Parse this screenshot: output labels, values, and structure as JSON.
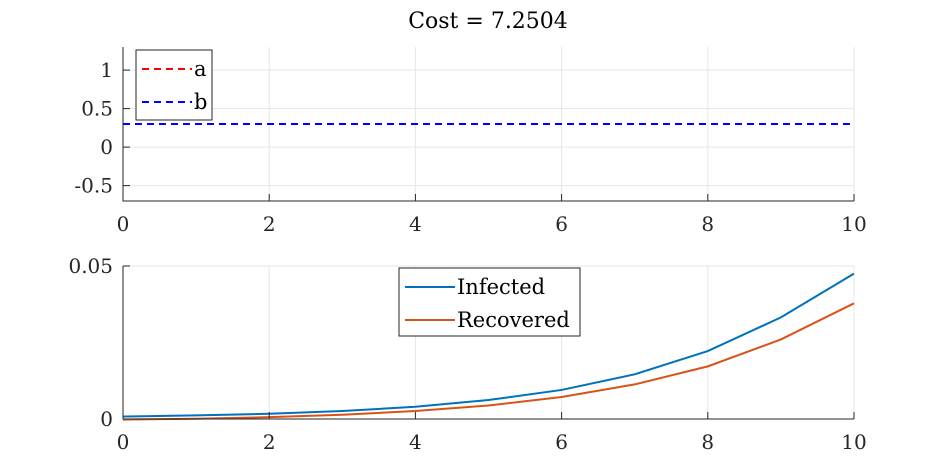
{
  "chart_data": [
    {
      "type": "line",
      "title": "Cost = 7.2504",
      "xlim": [
        0,
        10
      ],
      "ylim": [
        -0.7,
        1.3
      ],
      "xticks": [
        "0",
        "2",
        "4",
        "6",
        "8",
        "10"
      ],
      "xtick_values": [
        0,
        2,
        4,
        6,
        8,
        10
      ],
      "yticks": [
        "1",
        "0.5",
        "0",
        "-0.5"
      ],
      "ytick_values": [
        1,
        0.5,
        0,
        -0.5
      ],
      "grid": true,
      "legend_position": "top-left",
      "series": [
        {
          "name": "a",
          "color": "#ff0000",
          "style": "dashed",
          "x": [
            0,
            10
          ],
          "y": [
            0.3,
            0.3
          ]
        },
        {
          "name": "b",
          "color": "#0000ff",
          "style": "dashed",
          "x": [
            0,
            10
          ],
          "y": [
            0.3,
            0.3
          ]
        }
      ]
    },
    {
      "type": "line",
      "xlim": [
        0,
        10
      ],
      "ylim": [
        0,
        0.05
      ],
      "xticks": [
        "0",
        "2",
        "4",
        "6",
        "8",
        "10"
      ],
      "xtick_values": [
        0,
        2,
        4,
        6,
        8,
        10
      ],
      "yticks": [
        "0.05",
        "0"
      ],
      "ytick_values": [
        0.05,
        0
      ],
      "grid": true,
      "legend_position": "top-center",
      "series": [
        {
          "name": "Infected",
          "color": "#0072bd",
          "x": [
            0,
            1,
            2,
            3,
            4,
            5,
            6,
            7,
            8,
            9,
            10
          ],
          "y": [
            0.0008,
            0.0012,
            0.0017,
            0.0026,
            0.004,
            0.0062,
            0.0095,
            0.0146,
            0.0222,
            0.0332,
            0.0475
          ]
        },
        {
          "name": "Recovered",
          "color": "#d95319",
          "x": [
            0,
            1,
            2,
            3,
            4,
            5,
            6,
            7,
            8,
            9,
            10
          ],
          "y": [
            -0.0002,
            0.0001,
            0.0006,
            0.0014,
            0.0026,
            0.0044,
            0.0072,
            0.0113,
            0.0172,
            0.026,
            0.0378
          ]
        }
      ]
    }
  ]
}
